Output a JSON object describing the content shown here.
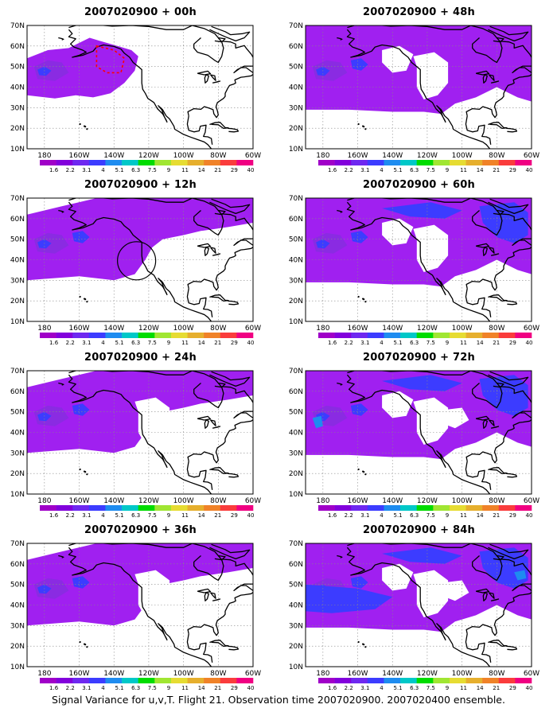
{
  "caption": "Signal Variance for u,v,T. Flight 21. Observation time 2007020900. 2007020400 ensemble.",
  "panels": [
    {
      "title": "2007020900 + 00h",
      "level": 1,
      "circle": false,
      "box": true
    },
    {
      "title": "2007020900 + 12h",
      "level": 2,
      "circle": true,
      "box": false
    },
    {
      "title": "2007020900 + 24h",
      "level": 3,
      "circle": false,
      "box": false
    },
    {
      "title": "2007020900 + 36h",
      "level": 3,
      "circle": false,
      "box": false
    },
    {
      "title": "2007020900 + 48h",
      "level": 4,
      "circle": false,
      "box": false
    },
    {
      "title": "2007020900 + 60h",
      "level": 5,
      "circle": false,
      "box": false
    },
    {
      "title": "2007020900 + 72h",
      "level": 6,
      "circle": false,
      "box": false
    },
    {
      "title": "2007020900 + 84h",
      "level": 7,
      "circle": false,
      "box": false
    }
  ],
  "y_ticks": [
    "70N",
    "60N",
    "50N",
    "40N",
    "30N",
    "20N",
    "10N"
  ],
  "x_ticks": [
    "180",
    "160W",
    "140W",
    "120W",
    "100W",
    "80W",
    "60W"
  ],
  "colorbar": {
    "labels": [
      "1.6",
      "2.2",
      "3.1",
      "4",
      "5.1",
      "6.3",
      "7.5",
      "9",
      "11",
      "14",
      "21",
      "29",
      "40"
    ],
    "colors": [
      "#a000c8",
      "#8200dc",
      "#6e28f0",
      "#3c3cff",
      "#1e8cf0",
      "#00c8c8",
      "#00dc00",
      "#a0e632",
      "#e6dc32",
      "#e6af2d",
      "#f08228",
      "#fa3c3c",
      "#f00082"
    ]
  },
  "colors": {
    "low": "#a020f0",
    "mid": "#8a2be2",
    "high": "#3c3cff",
    "peak": "#1e8cf0",
    "marker": "#ff0000"
  }
}
